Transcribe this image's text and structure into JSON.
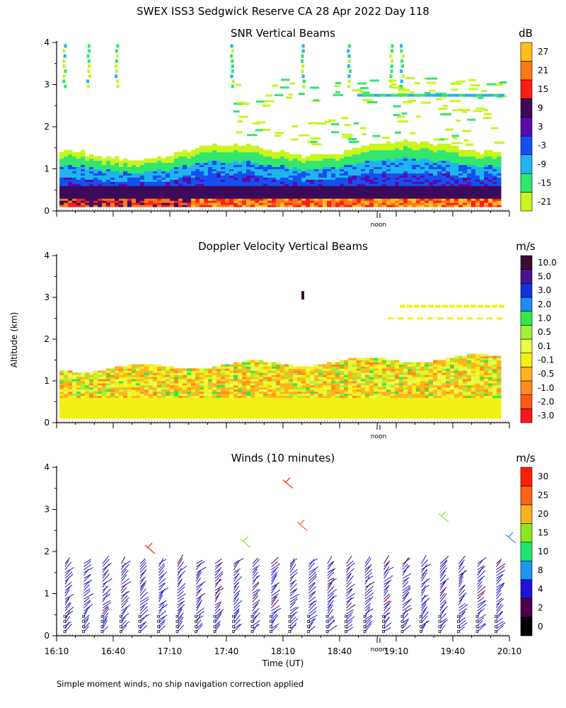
{
  "figure": {
    "title": "SWEX ISS3 Sedgwick Reserve CA  28 Apr 2022 Day 118",
    "ylabel": "Altitude (km)",
    "xlabel": "Time (UT)",
    "noon_label": "noon",
    "footnote": "Simple moment winds, no ship navigation correction applied"
  },
  "chart_data": [
    {
      "type": "heatmap",
      "title": "SNR Vertical Beams",
      "unit": "dB",
      "ylim": [
        0,
        4
      ],
      "yticks": [
        "0",
        "1",
        "2",
        "3",
        "4"
      ],
      "colorbar": {
        "labels": [
          "-21",
          "-15",
          "-9",
          "-3",
          "3",
          "9",
          "15",
          "21",
          "27"
        ],
        "colors": [
          "#c8f51e",
          "#32e66e",
          "#1eb4f0",
          "#1450f0",
          "#5a0aaa",
          "#3c0a5a",
          "#ff1e14",
          "#ff7814",
          "#ffbe1e"
        ]
      }
    },
    {
      "type": "heatmap",
      "title": "Doppler Velocity Vertical Beams",
      "unit": "m/s",
      "ylim": [
        0,
        4
      ],
      "yticks": [
        "0",
        "1",
        "2",
        "3",
        "4"
      ],
      "colorbar": {
        "labels": [
          "-3.0",
          "-2.0",
          "-1.0",
          "-0.5",
          "-0.1",
          "0.1",
          "0.5",
          "1.0",
          "2.0",
          "3.0",
          "5.0",
          "10.0"
        ],
        "colors": [
          "#ff141e",
          "#ff5a14",
          "#ff8c1e",
          "#ffb41e",
          "#f5f014",
          "#e6ff46",
          "#a0f03c",
          "#32e64b",
          "#1e8cf0",
          "#1432dc",
          "#46148c",
          "#3c0a32"
        ]
      }
    },
    {
      "type": "scatter",
      "title": "Winds (10 minutes)",
      "unit": "m/s",
      "ylim": [
        0,
        4
      ],
      "yticks": [
        "0",
        "1",
        "2",
        "3",
        "4"
      ],
      "x_start": "16:10",
      "x_end": "20:10",
      "xticks": [
        "16:10",
        "16:40",
        "17:10",
        "17:40",
        "18:10",
        "18:40",
        "19:10",
        "19:40",
        "20:10"
      ],
      "colorbar": {
        "labels": [
          "0",
          "2",
          "4",
          "8",
          "10",
          "15",
          "20",
          "25",
          "30"
        ],
        "colors": [
          "#000000",
          "#50004b",
          "#1e14d2",
          "#1e96f0",
          "#1ee66e",
          "#8ce61e",
          "#f5b41e",
          "#ff6414",
          "#ff1e0a"
        ]
      }
    }
  ]
}
